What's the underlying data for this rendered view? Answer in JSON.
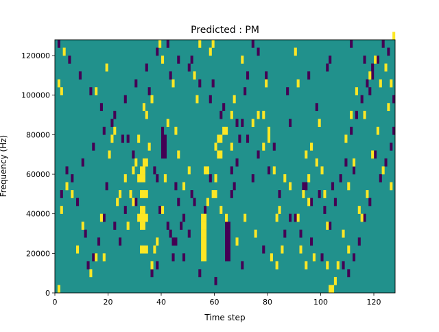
{
  "chart_data": {
    "type": "heatmap",
    "title": "Predicted : PM",
    "xlabel": "Time step",
    "ylabel": "Frequency (Hz)",
    "xlim": [
      0,
      128
    ],
    "ylim": [
      0,
      128000
    ],
    "bin_height_hz": 4000,
    "background_color": "#21918c",
    "high_color": "#fde725",
    "low_color": "#440154",
    "x_ticks": [
      0,
      20,
      40,
      60,
      80,
      100,
      120
    ],
    "x_tick_labels": [
      "0",
      "20",
      "40",
      "60",
      "80",
      "100",
      "120"
    ],
    "y_ticks": [
      0,
      20000,
      40000,
      60000,
      80000,
      100000,
      120000
    ],
    "y_tick_labels": [
      "0",
      "20000",
      "40000",
      "60000",
      "80000",
      "100000",
      "120000"
    ],
    "high_cells": [
      [
        1,
        0
      ],
      [
        32,
        5
      ],
      [
        33,
        5
      ],
      [
        34,
        5
      ],
      [
        32,
        8
      ],
      [
        33,
        8
      ],
      [
        31,
        9
      ],
      [
        32,
        9
      ],
      [
        33,
        9
      ],
      [
        34,
        9
      ],
      [
        32,
        10
      ],
      [
        33,
        10
      ],
      [
        32,
        12
      ],
      [
        33,
        12
      ],
      [
        34,
        12
      ],
      [
        31,
        14
      ],
      [
        32,
        14
      ],
      [
        33,
        14
      ],
      [
        32,
        15
      ],
      [
        33,
        15
      ],
      [
        33,
        16
      ],
      [
        34,
        16
      ],
      [
        55,
        4
      ],
      [
        56,
        4
      ],
      [
        55,
        5
      ],
      [
        56,
        5
      ],
      [
        55,
        6
      ],
      [
        56,
        6
      ],
      [
        55,
        7
      ],
      [
        56,
        7
      ],
      [
        55,
        8
      ],
      [
        56,
        8
      ],
      [
        55,
        9
      ],
      [
        56,
        9
      ],
      [
        59,
        12
      ],
      [
        60,
        12
      ],
      [
        56,
        15
      ],
      [
        57,
        15
      ],
      [
        60,
        14
      ],
      [
        61,
        17
      ],
      [
        62,
        17
      ],
      [
        60,
        18
      ],
      [
        61,
        19
      ],
      [
        62,
        19
      ],
      [
        64,
        20
      ],
      [
        66,
        18
      ],
      [
        78,
        18
      ],
      [
        80,
        19
      ],
      [
        78,
        22
      ],
      [
        80,
        20
      ],
      [
        83,
        9
      ],
      [
        82,
        15
      ],
      [
        83,
        3
      ],
      [
        85,
        5
      ],
      [
        19,
        28
      ],
      [
        20,
        17
      ],
      [
        24,
        12
      ],
      [
        8,
        5
      ],
      [
        10,
        8
      ],
      [
        6,
        12
      ],
      [
        4,
        13
      ],
      [
        2,
        10
      ],
      [
        1,
        26
      ],
      [
        3,
        30
      ],
      [
        2,
        25
      ],
      [
        15,
        25
      ],
      [
        18,
        4
      ],
      [
        27,
        8
      ],
      [
        29,
        11
      ],
      [
        36,
        3
      ],
      [
        37,
        5
      ],
      [
        38,
        6
      ],
      [
        40,
        10
      ],
      [
        41,
        14
      ],
      [
        48,
        13
      ],
      [
        50,
        15
      ],
      [
        21,
        19
      ],
      [
        22,
        20
      ],
      [
        26,
        14
      ],
      [
        30,
        16
      ],
      [
        34,
        22
      ],
      [
        44,
        26
      ],
      [
        52,
        27
      ],
      [
        53,
        24
      ],
      [
        58,
        30
      ],
      [
        59,
        31
      ],
      [
        63,
        20
      ],
      [
        67,
        24
      ],
      [
        70,
        29
      ],
      [
        74,
        21
      ],
      [
        76,
        22
      ],
      [
        79,
        26
      ],
      [
        90,
        30
      ],
      [
        91,
        26
      ],
      [
        94,
        17
      ],
      [
        96,
        18
      ],
      [
        98,
        16
      ],
      [
        100,
        15
      ],
      [
        102,
        3
      ],
      [
        103,
        0
      ],
      [
        104,
        0
      ],
      [
        105,
        1
      ],
      [
        106,
        3
      ],
      [
        108,
        7
      ],
      [
        110,
        13
      ],
      [
        112,
        16
      ],
      [
        116,
        22
      ],
      [
        118,
        27
      ],
      [
        120,
        29
      ],
      [
        122,
        26
      ],
      [
        124,
        28
      ],
      [
        126,
        26
      ],
      [
        127,
        32
      ],
      [
        126,
        13
      ],
      [
        123,
        15
      ],
      [
        114,
        10
      ],
      [
        110,
        5
      ],
      [
        97,
        4
      ],
      [
        92,
        5
      ],
      [
        91,
        9
      ],
      [
        95,
        11
      ],
      [
        99,
        21
      ],
      [
        86,
        14
      ],
      [
        71,
        9
      ],
      [
        66,
        22
      ],
      [
        13,
        2
      ],
      [
        15,
        4
      ],
      [
        17,
        9
      ],
      [
        23,
        11
      ],
      [
        28,
        12
      ],
      [
        29,
        15
      ],
      [
        31,
        19
      ],
      [
        33,
        23
      ],
      [
        35,
        18
      ],
      [
        36,
        24
      ],
      [
        39,
        31
      ],
      [
        40,
        29
      ],
      [
        42,
        21
      ],
      [
        45,
        20
      ],
      [
        46,
        17
      ],
      [
        54,
        31
      ],
      [
        57,
        11
      ],
      [
        62,
        10
      ],
      [
        64,
        9
      ],
      [
        68,
        6
      ],
      [
        75,
        7
      ],
      [
        81,
        4
      ],
      [
        84,
        10
      ],
      [
        88,
        13
      ],
      [
        93,
        12
      ],
      [
        95,
        14
      ],
      [
        101,
        12
      ],
      [
        109,
        19
      ],
      [
        111,
        22
      ],
      [
        113,
        25
      ],
      [
        115,
        9
      ],
      [
        117,
        12
      ],
      [
        119,
        17
      ],
      [
        121,
        20
      ],
      [
        125,
        23
      ],
      [
        94,
        3
      ],
      [
        102,
        8
      ]
    ],
    "low_cells": [
      [
        64,
        4
      ],
      [
        65,
        4
      ],
      [
        64,
        5
      ],
      [
        65,
        5
      ],
      [
        64,
        6
      ],
      [
        65,
        6
      ],
      [
        64,
        7
      ],
      [
        65,
        7
      ],
      [
        64,
        8
      ],
      [
        65,
        8
      ],
      [
        64,
        9
      ],
      [
        40,
        17
      ],
      [
        41,
        17
      ],
      [
        40,
        18
      ],
      [
        41,
        18
      ],
      [
        40,
        19
      ],
      [
        41,
        19
      ],
      [
        40,
        20
      ],
      [
        42,
        8
      ],
      [
        43,
        7
      ],
      [
        44,
        6
      ],
      [
        45,
        6
      ],
      [
        37,
        15
      ],
      [
        38,
        14
      ],
      [
        39,
        10
      ],
      [
        47,
        8
      ],
      [
        48,
        9
      ],
      [
        45,
        13
      ],
      [
        46,
        11
      ],
      [
        51,
        12
      ],
      [
        52,
        11
      ],
      [
        58,
        14
      ],
      [
        66,
        15
      ],
      [
        67,
        13
      ],
      [
        68,
        16
      ],
      [
        69,
        19
      ],
      [
        70,
        21
      ],
      [
        72,
        27
      ],
      [
        74,
        31
      ],
      [
        76,
        30
      ],
      [
        93,
        13
      ],
      [
        94,
        13
      ],
      [
        99,
        12
      ],
      [
        101,
        10
      ],
      [
        103,
        8
      ],
      [
        105,
        11
      ],
      [
        107,
        14
      ],
      [
        109,
        16
      ],
      [
        111,
        20
      ],
      [
        113,
        22
      ],
      [
        115,
        24
      ],
      [
        117,
        26
      ],
      [
        119,
        27
      ],
      [
        121,
        29
      ],
      [
        123,
        31
      ],
      [
        125,
        30
      ],
      [
        127,
        20
      ],
      [
        126,
        18
      ],
      [
        124,
        16
      ],
      [
        122,
        14
      ],
      [
        118,
        11
      ],
      [
        116,
        9
      ],
      [
        114,
        6
      ],
      [
        112,
        4
      ],
      [
        110,
        2
      ],
      [
        108,
        3
      ],
      [
        100,
        4
      ],
      [
        96,
        6
      ],
      [
        92,
        7
      ],
      [
        88,
        9
      ],
      [
        84,
        12
      ],
      [
        80,
        15
      ],
      [
        76,
        17
      ],
      [
        72,
        19
      ],
      [
        68,
        21
      ],
      [
        62,
        22
      ],
      [
        58,
        24
      ],
      [
        54,
        26
      ],
      [
        50,
        28
      ],
      [
        46,
        29
      ],
      [
        42,
        31
      ],
      [
        38,
        30
      ],
      [
        34,
        28
      ],
      [
        30,
        26
      ],
      [
        26,
        24
      ],
      [
        22,
        22
      ],
      [
        18,
        20
      ],
      [
        14,
        18
      ],
      [
        10,
        16
      ],
      [
        6,
        14
      ],
      [
        2,
        12
      ],
      [
        1,
        31
      ],
      [
        5,
        29
      ],
      [
        9,
        27
      ],
      [
        13,
        25
      ],
      [
        17,
        23
      ],
      [
        21,
        21
      ],
      [
        25,
        19
      ],
      [
        29,
        17
      ],
      [
        33,
        16
      ],
      [
        12,
        3
      ],
      [
        14,
        4
      ],
      [
        16,
        6
      ],
      [
        22,
        8
      ],
      [
        26,
        10
      ],
      [
        30,
        11
      ],
      [
        36,
        2
      ],
      [
        48,
        4
      ],
      [
        54,
        2
      ],
      [
        60,
        1
      ],
      [
        70,
        3
      ],
      [
        78,
        5
      ],
      [
        86,
        7
      ],
      [
        90,
        9
      ],
      [
        96,
        11
      ],
      [
        104,
        13
      ],
      [
        112,
        15
      ],
      [
        120,
        17
      ],
      [
        128,
        19
      ],
      [
        116,
        29
      ],
      [
        118,
        25
      ],
      [
        102,
        28
      ],
      [
        98,
        23
      ],
      [
        88,
        21
      ],
      [
        82,
        18
      ],
      [
        74,
        14
      ],
      [
        66,
        12
      ],
      [
        56,
        10
      ],
      [
        50,
        7
      ],
      [
        44,
        4
      ],
      [
        38,
        3
      ],
      [
        24,
        6
      ],
      [
        18,
        9
      ],
      [
        8,
        11
      ],
      [
        4,
        15
      ],
      [
        11,
        7
      ],
      [
        19,
        13
      ],
      [
        27,
        19
      ],
      [
        35,
        25
      ],
      [
        43,
        27
      ],
      [
        51,
        29
      ],
      [
        59,
        26
      ],
      [
        63,
        23
      ],
      [
        71,
        25
      ],
      [
        79,
        27
      ],
      [
        87,
        25
      ],
      [
        95,
        27
      ],
      [
        103,
        29
      ],
      [
        111,
        31
      ],
      [
        119,
        28
      ],
      [
        127,
        24
      ]
    ]
  }
}
